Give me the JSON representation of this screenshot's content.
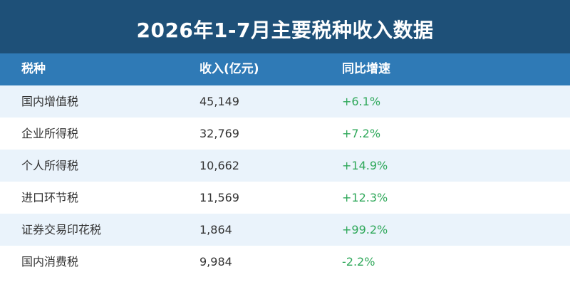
{
  "title": "2026年1-7月主要税种收入数据",
  "colors": {
    "title_bg": "#1e5078",
    "header_bg": "#2f7ab6",
    "row_alt_bg": "#eaf3fb",
    "change_text": "#2fa85a"
  },
  "chart_data": {
    "type": "table",
    "title": "2026年1-7月主要税种收入数据",
    "columns": [
      "税种",
      "收入(亿元)",
      "同比增速"
    ],
    "rows": [
      [
        "国内增值税",
        "45,149",
        "+6.1%"
      ],
      [
        "企业所得税",
        "32,769",
        "+7.2%"
      ],
      [
        "个人所得税",
        "10,662",
        "+14.9%"
      ],
      [
        "进口环节税",
        "11,569",
        "+12.3%"
      ],
      [
        "证券交易印花税",
        "1,864",
        "+99.2%"
      ],
      [
        "国内消费税",
        "9,984",
        "-2.2%"
      ]
    ]
  }
}
